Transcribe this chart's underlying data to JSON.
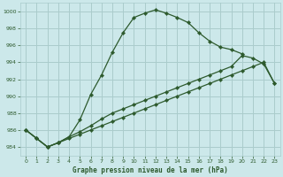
{
  "bg_color": "#cce8ea",
  "grid_color": "#aacccc",
  "line_color": "#2d5a2d",
  "title": "Graphe pression niveau de la mer (hPa)",
  "xlim": [
    -0.5,
    23.5
  ],
  "ylim": [
    983.0,
    1001.0
  ],
  "yticks": [
    984,
    986,
    988,
    990,
    992,
    994,
    996,
    998,
    1000
  ],
  "xticks": [
    0,
    1,
    2,
    3,
    4,
    5,
    6,
    7,
    8,
    9,
    10,
    11,
    12,
    13,
    14,
    15,
    16,
    17,
    18,
    19,
    20,
    21,
    22,
    23
  ],
  "line1_x": [
    0,
    1,
    2,
    3,
    4,
    5,
    6,
    7,
    8,
    9,
    10,
    11,
    12,
    13,
    14,
    15,
    16,
    17,
    18,
    19,
    20,
    21,
    22,
    23
  ],
  "line1_y": [
    986,
    985,
    984,
    984.5,
    985.2,
    987.0,
    990.0,
    992.5,
    995.0,
    997.5,
    999.3,
    999.8,
    1000.2,
    999.8,
    999.3,
    998.7,
    997.5,
    996.5,
    995.7,
    995.5,
    995.0,
    null,
    null,
    null
  ],
  "line2_x": [
    0,
    1,
    2,
    3,
    4,
    5,
    6,
    7,
    8,
    9,
    10,
    11,
    12,
    13,
    14,
    15,
    16,
    17,
    18,
    19,
    20,
    21,
    22,
    23
  ],
  "line2_y": [
    986,
    985,
    984,
    984.5,
    985.0,
    985.5,
    986.0,
    986.5,
    987.0,
    987.5,
    988.0,
    988.5,
    989.0,
    989.5,
    990.0,
    990.5,
    991.0,
    991.5,
    992.0,
    992.5,
    993.0,
    993.5,
    994.0,
    991.5
  ],
  "line3_x": [
    0,
    1,
    2,
    3,
    4,
    5,
    6,
    7,
    8,
    9,
    10,
    11,
    12,
    13,
    14,
    15,
    16,
    17,
    18,
    19,
    20,
    21,
    22,
    23
  ],
  "line3_y": [
    986,
    985,
    984,
    984.5,
    985.2,
    986.0,
    987.0,
    987.5,
    988.0,
    988.5,
    989.0,
    989.5,
    990.0,
    990.5,
    991.0,
    991.5,
    992.0,
    992.5,
    993.0,
    993.5,
    994.8,
    994.5,
    993.8,
    991.5
  ]
}
